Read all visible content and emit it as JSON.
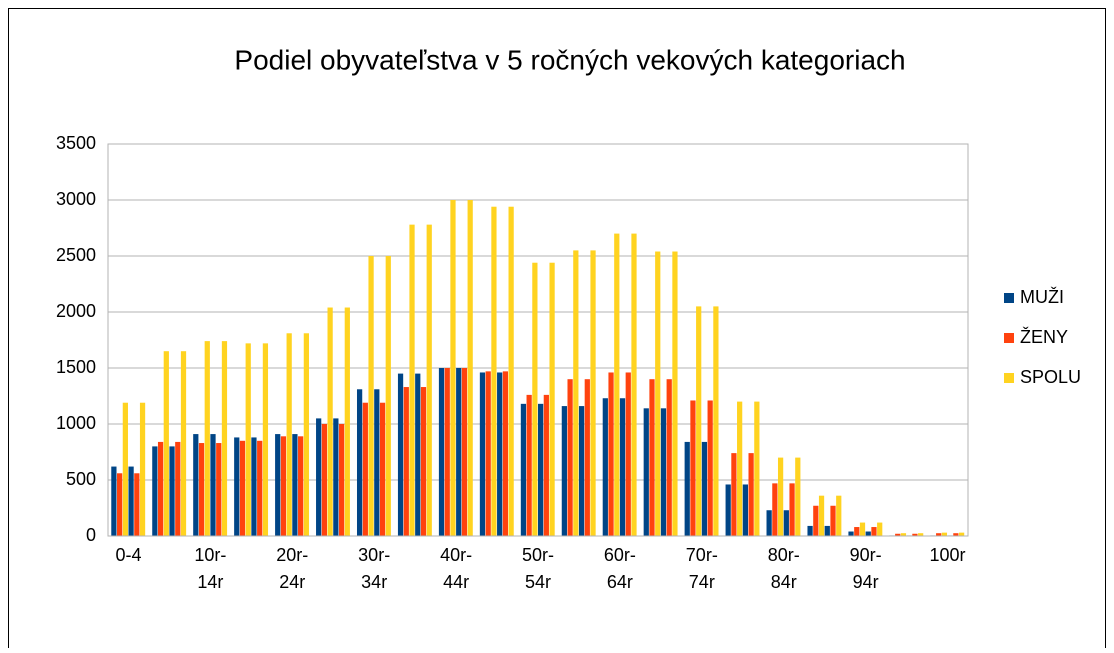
{
  "chart_data": {
    "type": "bar",
    "title": "Podiel obyvateľstva v 5 ročných vekových kategoriach",
    "categories": [
      "0-4",
      null,
      "10r-\n14r",
      null,
      "20r-\n24r",
      null,
      "30r-\n34r",
      null,
      "40r-\n44r",
      null,
      "50r-\n54r",
      null,
      "60r-\n64r",
      null,
      "70r-\n74r",
      null,
      "80r-\n84r",
      null,
      "90r-\n94r",
      null,
      "100r"
    ],
    "series": [
      {
        "name": "MUŽI",
        "color": "#004586",
        "values": [
          620,
          800,
          910,
          880,
          910,
          1050,
          1310,
          1450,
          1500,
          1460,
          1180,
          1160,
          1230,
          1140,
          840,
          460,
          230,
          90,
          40,
          5,
          5
        ]
      },
      {
        "name": "ŽENY",
        "color": "#ff420e",
        "values": [
          560,
          840,
          830,
          850,
          890,
          1000,
          1190,
          1330,
          1500,
          1470,
          1260,
          1400,
          1460,
          1400,
          1210,
          740,
          470,
          270,
          80,
          20,
          25
        ]
      },
      {
        "name": "SPOLU",
        "color": "#ffd320",
        "values": [
          1190,
          1650,
          1740,
          1720,
          1810,
          2040,
          2500,
          2780,
          3000,
          2940,
          2440,
          2550,
          2700,
          2540,
          2050,
          1200,
          700,
          360,
          120,
          25,
          30
        ]
      }
    ],
    "ylim": [
      0,
      3500
    ],
    "yticks": [
      0,
      500,
      1000,
      1500,
      2000,
      2500,
      3000,
      3500
    ],
    "grid": true,
    "legend": "right"
  }
}
